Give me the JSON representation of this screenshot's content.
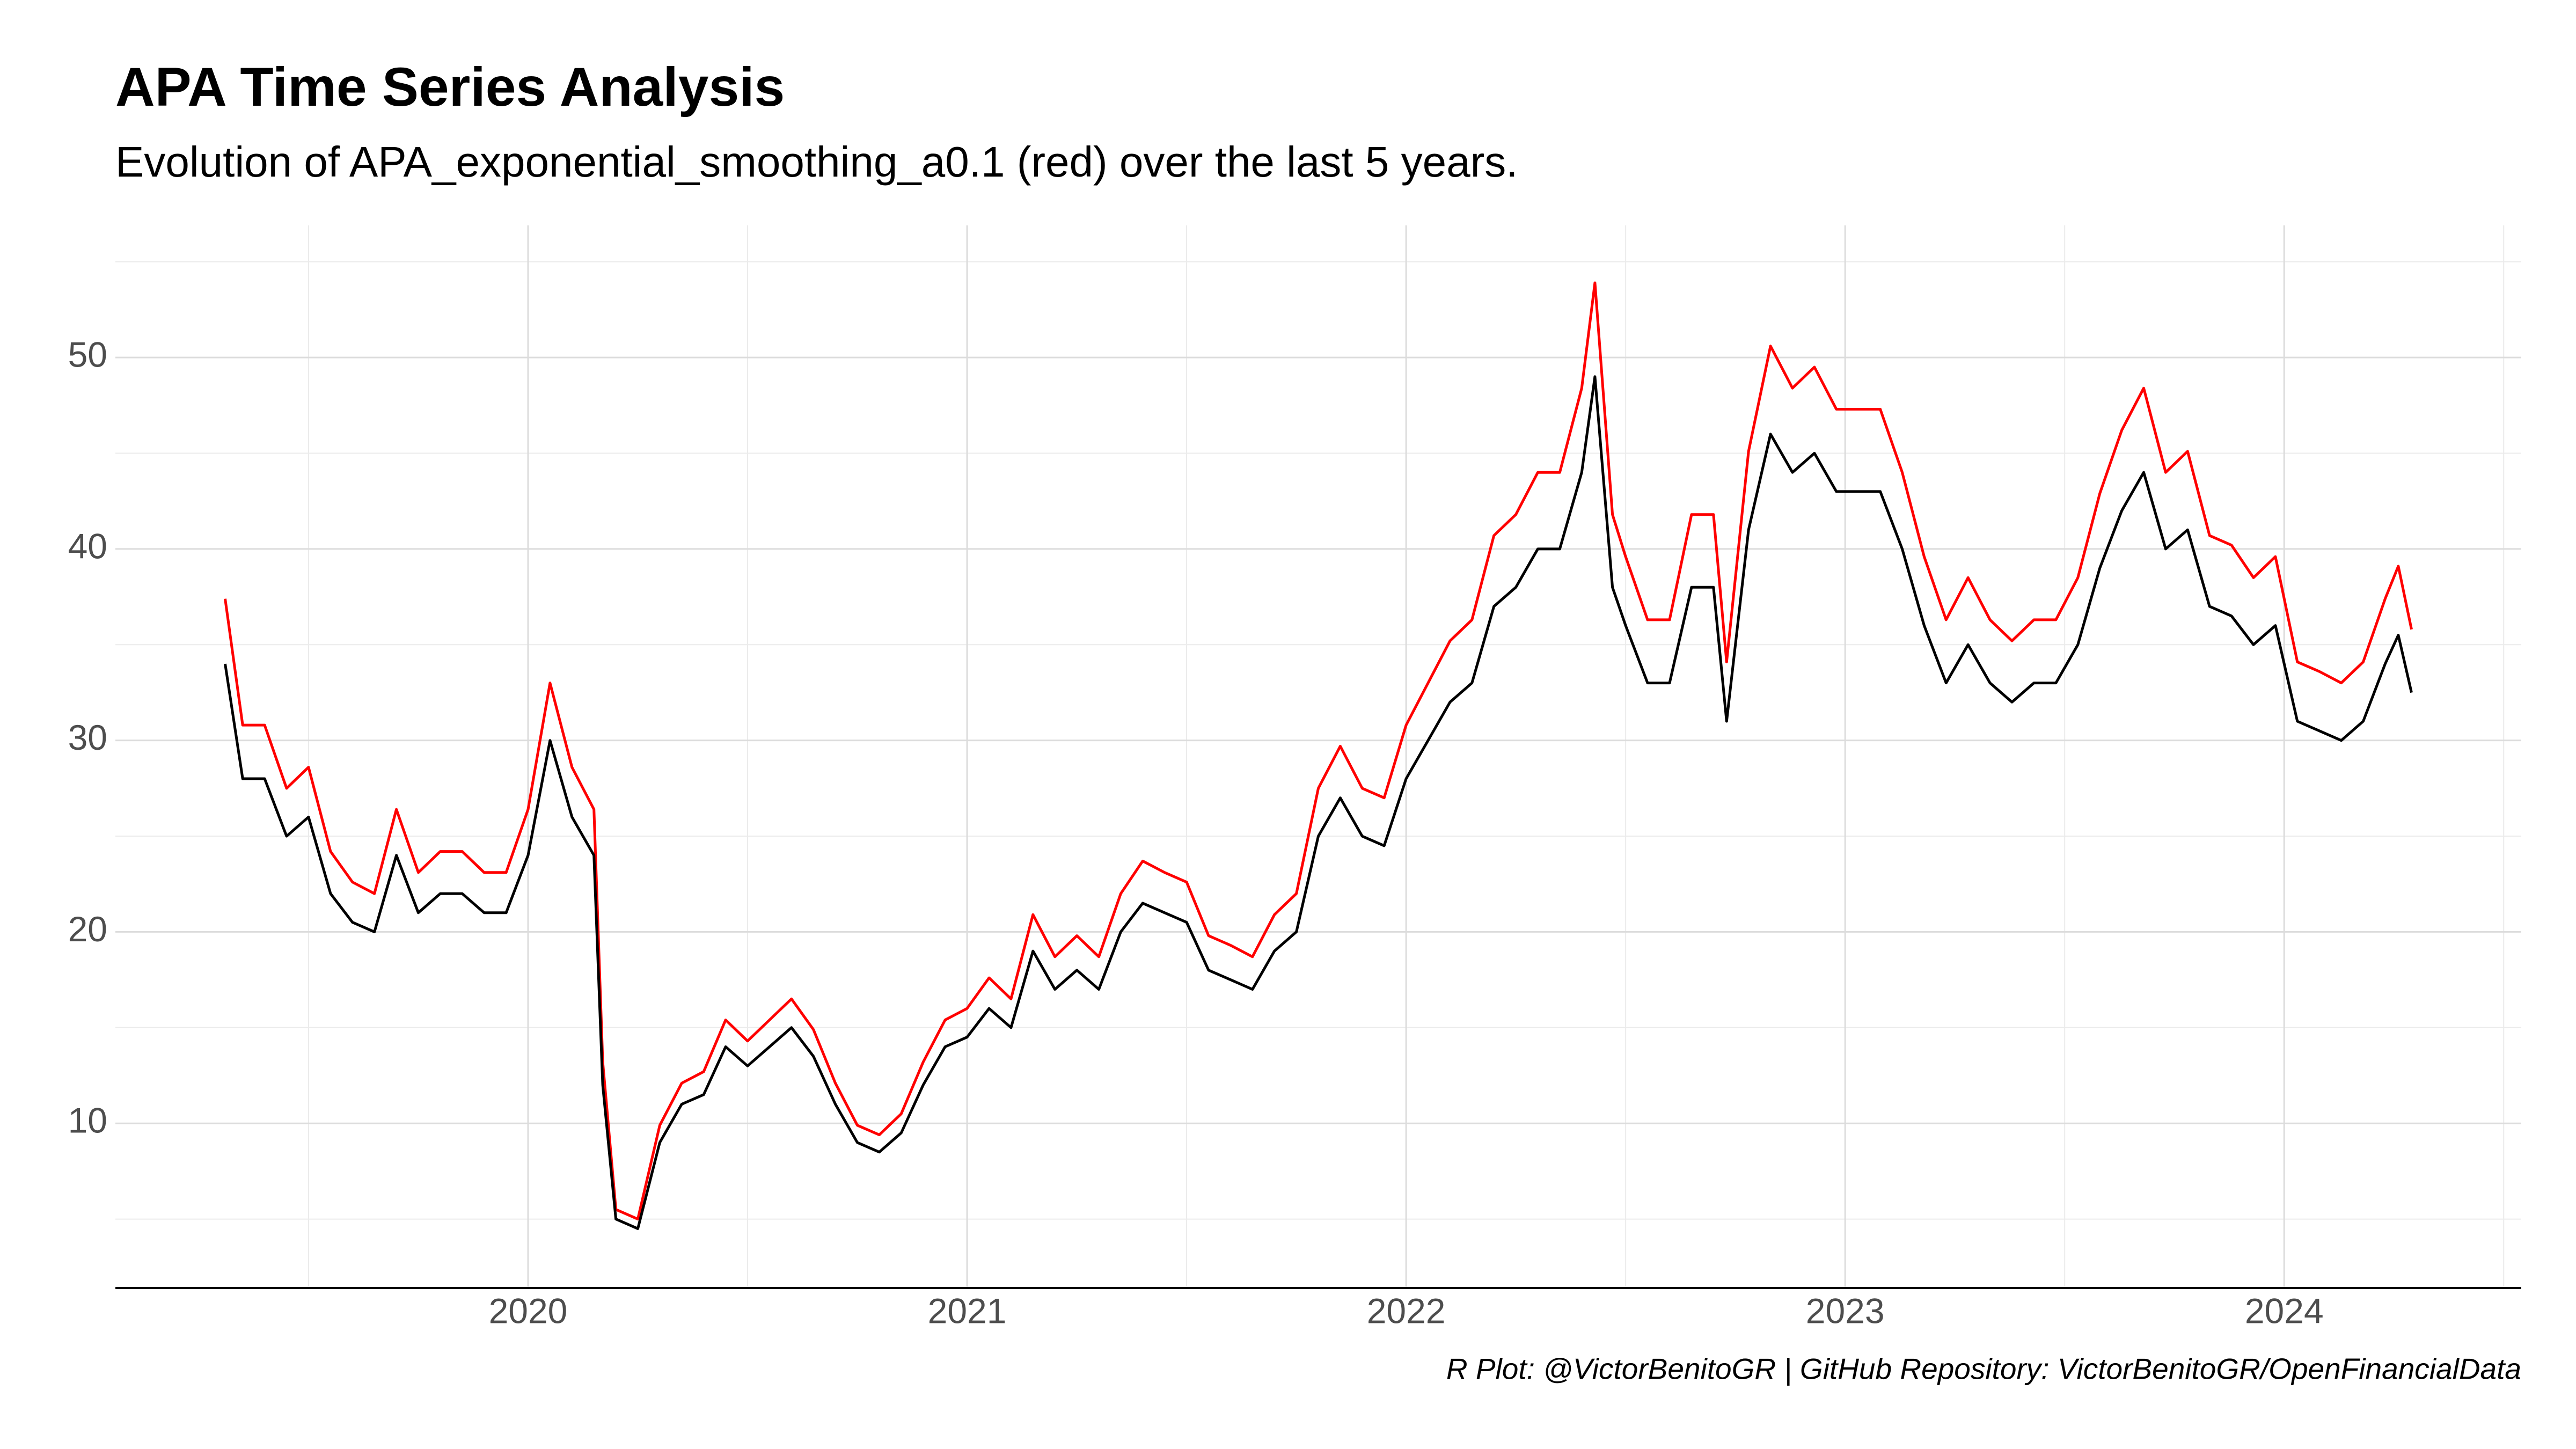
{
  "chart_data": {
    "type": "line",
    "title": "APA Time Series Analysis",
    "subtitle": "Evolution of APA_exponential_smoothing_a0.1  (red) over the last 5 years.",
    "caption": "R Plot: @VictorBenitoGR | GitHub Repository:  VictorBenitoGR/OpenFinancialData",
    "x": [
      2019.31,
      2019.35,
      2019.4,
      2019.45,
      2019.5,
      2019.55,
      2019.6,
      2019.65,
      2019.7,
      2019.75,
      2019.8,
      2019.85,
      2019.9,
      2019.95,
      2020,
      2020.05,
      2020.1,
      2020.15,
      2020.17,
      2020.2,
      2020.25,
      2020.3,
      2020.35,
      2020.4,
      2020.45,
      2020.5,
      2020.55,
      2020.6,
      2020.65,
      2020.7,
      2020.75,
      2020.8,
      2020.85,
      2020.9,
      2020.95,
      2021,
      2021.05,
      2021.1,
      2021.15,
      2021.2,
      2021.25,
      2021.3,
      2021.35,
      2021.4,
      2021.45,
      2021.5,
      2021.55,
      2021.6,
      2021.65,
      2021.7,
      2021.75,
      2021.8,
      2021.85,
      2021.9,
      2021.95,
      2022,
      2022.05,
      2022.1,
      2022.15,
      2022.2,
      2022.25,
      2022.3,
      2022.35,
      2022.4,
      2022.43,
      2022.47,
      2022.5,
      2022.55,
      2022.6,
      2022.65,
      2022.7,
      2022.73,
      2022.78,
      2022.83,
      2022.88,
      2022.93,
      2022.98,
      2023.03,
      2023.08,
      2023.13,
      2023.18,
      2023.23,
      2023.28,
      2023.33,
      2023.38,
      2023.43,
      2023.48,
      2023.53,
      2023.58,
      2023.63,
      2023.68,
      2023.73,
      2023.78,
      2023.83,
      2023.88,
      2023.93,
      2023.98,
      2024.03,
      2024.08,
      2024.13,
      2024.18,
      2024.23,
      2024.26,
      2024.29
    ],
    "series": [
      {
        "color": "#ff0000",
        "values": [
          37.4,
          30.8,
          30.8,
          27.5,
          28.6,
          24.2,
          22.6,
          22,
          26.4,
          23.1,
          24.2,
          24.2,
          23.1,
          23.1,
          26.4,
          33,
          28.6,
          26.4,
          13.2,
          5.5,
          5,
          9.9,
          12.1,
          12.7,
          15.4,
          14.3,
          15.4,
          16.5,
          14.9,
          12.1,
          9.9,
          9.4,
          10.5,
          13.2,
          15.4,
          16,
          17.6,
          16.5,
          20.9,
          18.7,
          19.8,
          18.7,
          22,
          23.7,
          23.1,
          22.6,
          19.8,
          19.3,
          18.7,
          20.9,
          22,
          27.5,
          29.7,
          27.5,
          27,
          30.8,
          33,
          35.2,
          36.3,
          40.7,
          41.8,
          44,
          44,
          48.4,
          53.9,
          41.8,
          39.6,
          36.3,
          36.3,
          41.8,
          41.8,
          34.1,
          45.1,
          50.6,
          48.4,
          49.5,
          47.3,
          47.3,
          47.3,
          44,
          39.6,
          36.3,
          38.5,
          36.3,
          35.2,
          36.3,
          36.3,
          38.5,
          42.9,
          46.2,
          48.4,
          44,
          45.1,
          40.7,
          40.2,
          38.5,
          39.6,
          34.1,
          33.6,
          33,
          34.1,
          37.4,
          39.1,
          35.8
        ]
      },
      {
        "color": "#000000",
        "values": [
          34,
          28,
          28,
          25,
          26,
          22,
          20.5,
          20,
          24,
          21,
          22,
          22,
          21,
          21,
          24,
          30,
          26,
          24,
          12,
          5,
          4.5,
          9,
          11,
          11.5,
          14,
          13,
          14,
          15,
          13.5,
          11,
          9,
          8.5,
          9.5,
          12,
          14,
          14.5,
          16,
          15,
          19,
          17,
          18,
          17,
          20,
          21.5,
          21,
          20.5,
          18,
          17.5,
          17,
          19,
          20,
          25,
          27,
          25,
          24.5,
          28,
          30,
          32,
          33,
          37,
          38,
          40,
          40,
          44,
          49,
          38,
          36,
          33,
          33,
          38,
          38,
          31,
          41,
          46,
          44,
          45,
          43,
          43,
          43,
          40,
          36,
          33,
          35,
          33,
          32,
          33,
          33,
          35,
          39,
          42,
          44,
          40,
          41,
          37,
          36.5,
          35,
          36,
          31,
          30.5,
          30,
          31,
          34,
          35.5,
          32.5
        ]
      }
    ],
    "xlim": [
      2019.06,
      2024.54
    ],
    "xticks": [
      2020,
      2021,
      2022,
      2023,
      2024
    ],
    "x_minor_ticks": [
      2019.5,
      2020.5,
      2021.5,
      2022.5,
      2023.5,
      2024.5
    ],
    "ylim": [
      1.4,
      56.9
    ],
    "yticks": [
      10,
      20,
      30,
      40,
      50
    ],
    "y_minor_ticks": [
      5,
      15,
      25,
      35,
      45,
      55
    ],
    "grid": true
  }
}
